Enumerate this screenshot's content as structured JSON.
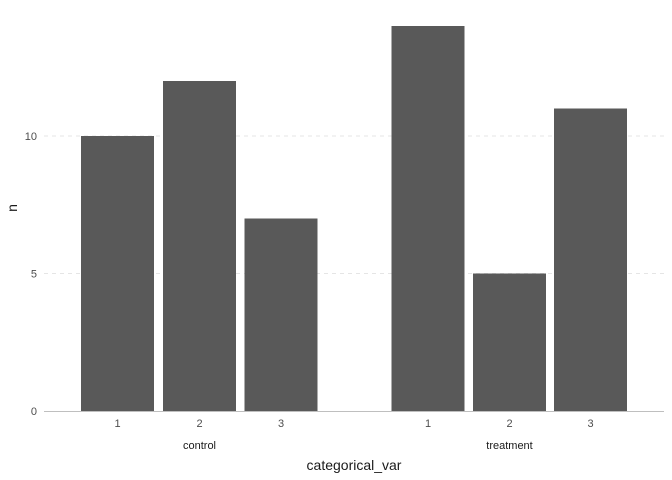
{
  "chart_data": {
    "type": "bar",
    "title": "",
    "xlabel": "categorical_var",
    "ylabel": "n",
    "ylim": [
      0,
      15
    ],
    "yticks": [
      0,
      5,
      10
    ],
    "grid": "horizontal-dashed",
    "legend": "none",
    "groups": [
      {
        "name": "control",
        "categories": [
          "1",
          "2",
          "3"
        ],
        "values": [
          10,
          12,
          7
        ]
      },
      {
        "name": "treatment",
        "categories": [
          "1",
          "2",
          "3"
        ],
        "values": [
          14,
          5,
          11
        ]
      }
    ],
    "colors": {
      "bar": "#595959",
      "grid": "#e5e5e5",
      "axis": "#bfbfbf"
    }
  }
}
